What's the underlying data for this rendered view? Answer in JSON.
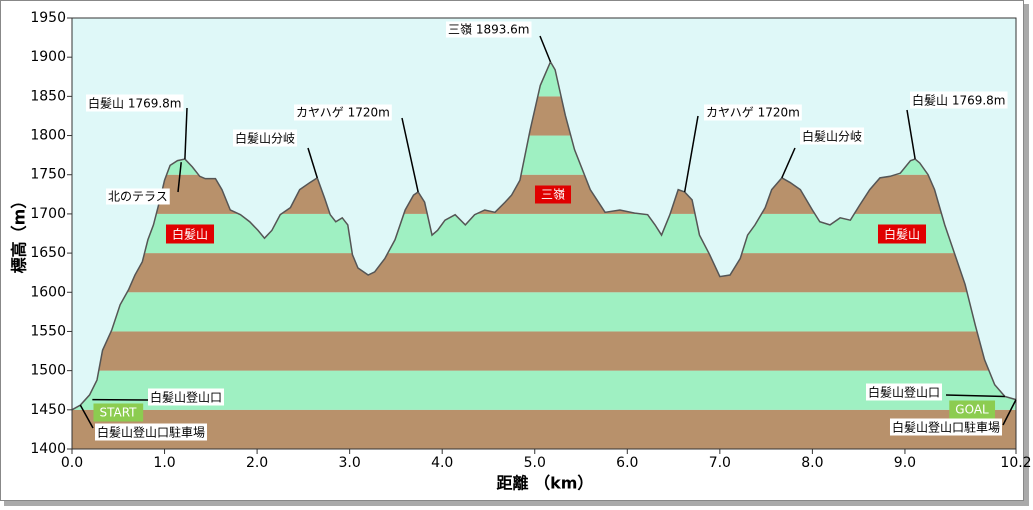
{
  "chart_data": {
    "type": "area",
    "xlabel": "距離 （km）",
    "ylabel": "標高（m）",
    "xlim": [
      0,
      10.2
    ],
    "ylim": [
      1400,
      1950
    ],
    "xticks": [
      {
        "value": 0,
        "label": "0.0"
      },
      {
        "value": 1,
        "label": "1.0"
      },
      {
        "value": 2,
        "label": "2.0"
      },
      {
        "value": 3,
        "label": "3.0"
      },
      {
        "value": 4,
        "label": "4.0"
      },
      {
        "value": 5,
        "label": "5.0"
      },
      {
        "value": 6,
        "label": "6.0"
      },
      {
        "value": 7,
        "label": "7.0"
      },
      {
        "value": 8,
        "label": "8.0"
      },
      {
        "value": 9,
        "label": "9.0"
      },
      10.2
    ],
    "yticks": [
      1400,
      1450,
      1500,
      1550,
      1600,
      1650,
      1700,
      1750,
      1800,
      1850,
      1900,
      1950
    ],
    "band_colors": [
      "#b8916b",
      "#9ff0c2"
    ],
    "background": "#dff8f8",
    "line_color": "#555555",
    "x": [
      0,
      0.09,
      0.19,
      0.27,
      0.33,
      0.43,
      0.52,
      0.61,
      0.68,
      0.76,
      0.82,
      0.88,
      0.95,
      1.0,
      1.06,
      1.14,
      1.22,
      1.3,
      1.38,
      1.44,
      1.55,
      1.62,
      1.71,
      1.82,
      1.92,
      2.01,
      2.08,
      2.16,
      2.25,
      2.36,
      2.46,
      2.57,
      2.65,
      2.73,
      2.79,
      2.85,
      2.92,
      2.98,
      3.03,
      3.09,
      3.2,
      3.27,
      3.38,
      3.49,
      3.6,
      3.69,
      3.74,
      3.81,
      3.89,
      3.95,
      4.03,
      4.14,
      4.25,
      4.35,
      4.46,
      4.57,
      4.68,
      4.75,
      4.84,
      4.95,
      5.06,
      5.17,
      5.22,
      5.33,
      5.43,
      5.6,
      5.76,
      5.92,
      6.08,
      6.22,
      6.3,
      6.37,
      6.46,
      6.55,
      6.62,
      6.7,
      6.78,
      6.89,
      7.0,
      7.11,
      7.22,
      7.3,
      7.38,
      7.49,
      7.56,
      7.67,
      7.76,
      7.87,
      8.0,
      8.08,
      8.19,
      8.3,
      8.41,
      8.51,
      8.62,
      8.73,
      8.84,
      8.95,
      9.06,
      9.11,
      9.16,
      9.25,
      9.32,
      9.43,
      9.54,
      9.65,
      9.76,
      9.86,
      9.97,
      10.08,
      10.2
    ],
    "values": [
      1450,
      1456,
      1469,
      1488,
      1526,
      1552,
      1584,
      1603,
      1622,
      1639,
      1667,
      1686,
      1718,
      1743,
      1762,
      1768,
      1770,
      1760,
      1748,
      1745,
      1745,
      1731,
      1705,
      1699,
      1690,
      1679,
      1669,
      1679,
      1699,
      1708,
      1731,
      1740,
      1746,
      1720,
      1699,
      1690,
      1695,
      1686,
      1648,
      1631,
      1622,
      1626,
      1643,
      1667,
      1705,
      1724,
      1728,
      1715,
      1673,
      1679,
      1692,
      1699,
      1686,
      1699,
      1705,
      1702,
      1715,
      1724,
      1743,
      1807,
      1864,
      1894,
      1884,
      1826,
      1782,
      1731,
      1702,
      1705,
      1701,
      1699,
      1686,
      1673,
      1699,
      1731,
      1728,
      1718,
      1673,
      1648,
      1620,
      1622,
      1643,
      1673,
      1686,
      1708,
      1731,
      1746,
      1740,
      1731,
      1705,
      1690,
      1686,
      1695,
      1692,
      1711,
      1731,
      1746,
      1748,
      1752,
      1768,
      1770,
      1765,
      1750,
      1731,
      1686,
      1648,
      1610,
      1558,
      1514,
      1482,
      1467,
      1463
    ],
    "annotations": [
      {
        "text": "三嶺 1893.6m",
        "x": 5.17,
        "y": 1894
      },
      {
        "text": "白髪山 1769.8m",
        "x": 1.22,
        "y": 1770
      },
      {
        "text": "北のテラス",
        "x": 1.18,
        "y": 1766
      },
      {
        "text": "白髪山分岐",
        "x": 2.65,
        "y": 1746
      },
      {
        "text": "カヤハゲ 1720m",
        "x": 3.74,
        "y": 1728
      },
      {
        "text": "カヤハゲ 1720m",
        "x": 6.62,
        "y": 1728
      },
      {
        "text": "白髪山分岐",
        "x": 7.67,
        "y": 1746
      },
      {
        "text": "白髪山 1769.8m",
        "x": 9.11,
        "y": 1770
      },
      {
        "text": "白髪山登山口",
        "x": 0.22,
        "y": 1463
      },
      {
        "text": "白髪山登山口駐車場",
        "x": 0.09,
        "y": 1456
      },
      {
        "text": "白髪山登山口",
        "x": 10.08,
        "y": 1467
      },
      {
        "text": "白髪山登山口駐車場",
        "x": 10.2,
        "y": 1463
      }
    ],
    "region_labels": [
      {
        "text": "白髪山",
        "color": "#e00000"
      },
      {
        "text": "三嶺",
        "color": "#e00000"
      },
      {
        "text": "白髪山",
        "color": "#e00000"
      }
    ],
    "endpoint_labels": [
      {
        "text": "START",
        "color": "#8ccc50"
      },
      {
        "text": "GOAL",
        "color": "#8ccc50"
      }
    ]
  }
}
